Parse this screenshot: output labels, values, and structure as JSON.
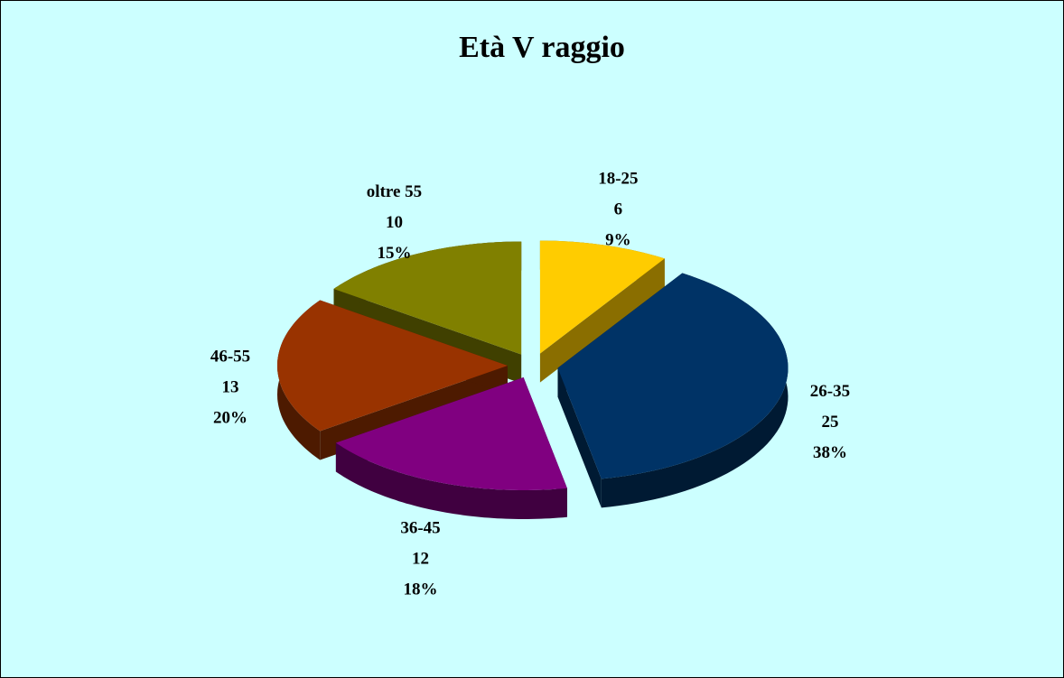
{
  "chart_data": {
    "type": "pie",
    "title": "Età V raggio",
    "categories": [
      "18-25",
      "26-35",
      "36-45",
      "46-55",
      "oltre 55"
    ],
    "values": [
      6,
      25,
      12,
      13,
      10
    ],
    "percent_labels": [
      "9%",
      "38%",
      "18%",
      "20%",
      "15%"
    ],
    "colors": [
      "#ffcc00",
      "#003366",
      "#800080",
      "#993300",
      "#808000"
    ],
    "side_colors": [
      "#8a6e00",
      "#001a33",
      "#400040",
      "#4d1a00",
      "#404000"
    ]
  }
}
